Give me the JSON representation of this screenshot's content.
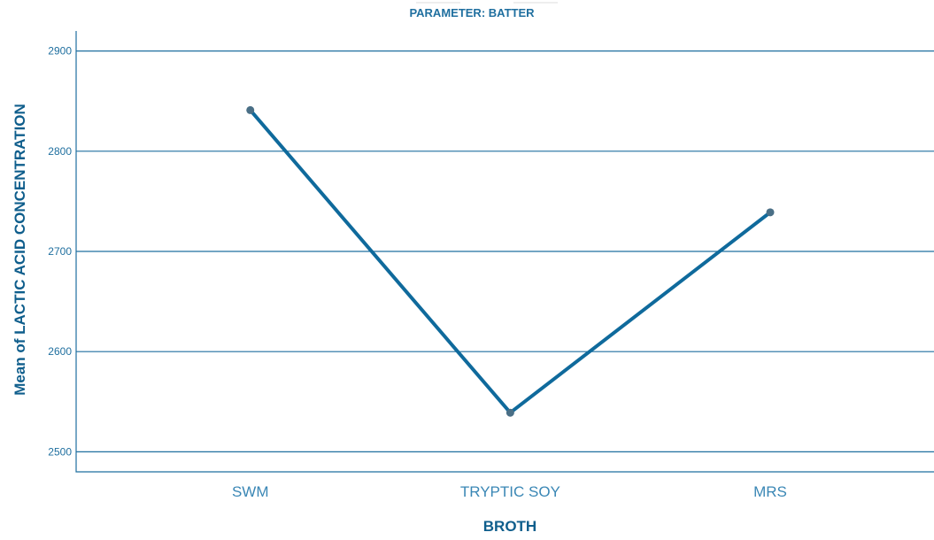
{
  "chart_data": {
    "type": "line",
    "title": "PARAMETER: BATTER",
    "xlabel": "BROTH",
    "ylabel": "Mean of LACTIC ACID CONCENTRATION",
    "categories": [
      "SWM",
      "TRYPTIC SOY",
      "MRS"
    ],
    "series": [
      {
        "values": [
          2841,
          2539,
          2739
        ]
      }
    ],
    "ylim": [
      2480,
      2920
    ],
    "yticks": [
      2500,
      2600,
      2700,
      2800,
      2900
    ],
    "grid": true,
    "colors": {
      "line": "#0f6a9c",
      "marker": "#4a6f86",
      "text": "#1f6f9f"
    }
  }
}
